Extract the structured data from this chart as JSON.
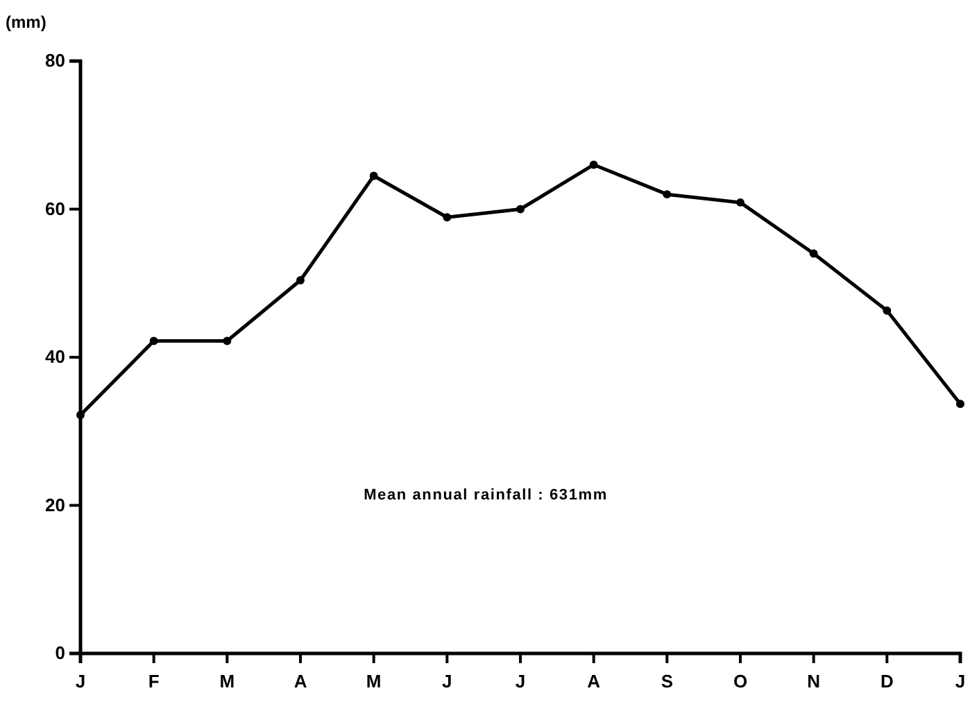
{
  "chart_data": {
    "type": "line",
    "ylabel": "(mm)",
    "categories": [
      "J",
      "F",
      "M",
      "A",
      "M",
      "J",
      "J",
      "A",
      "S",
      "O",
      "N",
      "D",
      "J"
    ],
    "series": [
      {
        "color": "#000000",
        "values": [
          32.2,
          42.2,
          42.2,
          50.4,
          64.5,
          58.9,
          60.0,
          66.0,
          62.0,
          60.9,
          54.0,
          46.3,
          33.7
        ]
      }
    ],
    "ylim": [
      0,
      80
    ],
    "yticks": [
      0,
      20,
      40,
      60,
      80
    ],
    "grid": false,
    "marker": "circle",
    "line_style": "solid",
    "annotations": [
      "Mean annual rainfall : 631mm"
    ]
  }
}
